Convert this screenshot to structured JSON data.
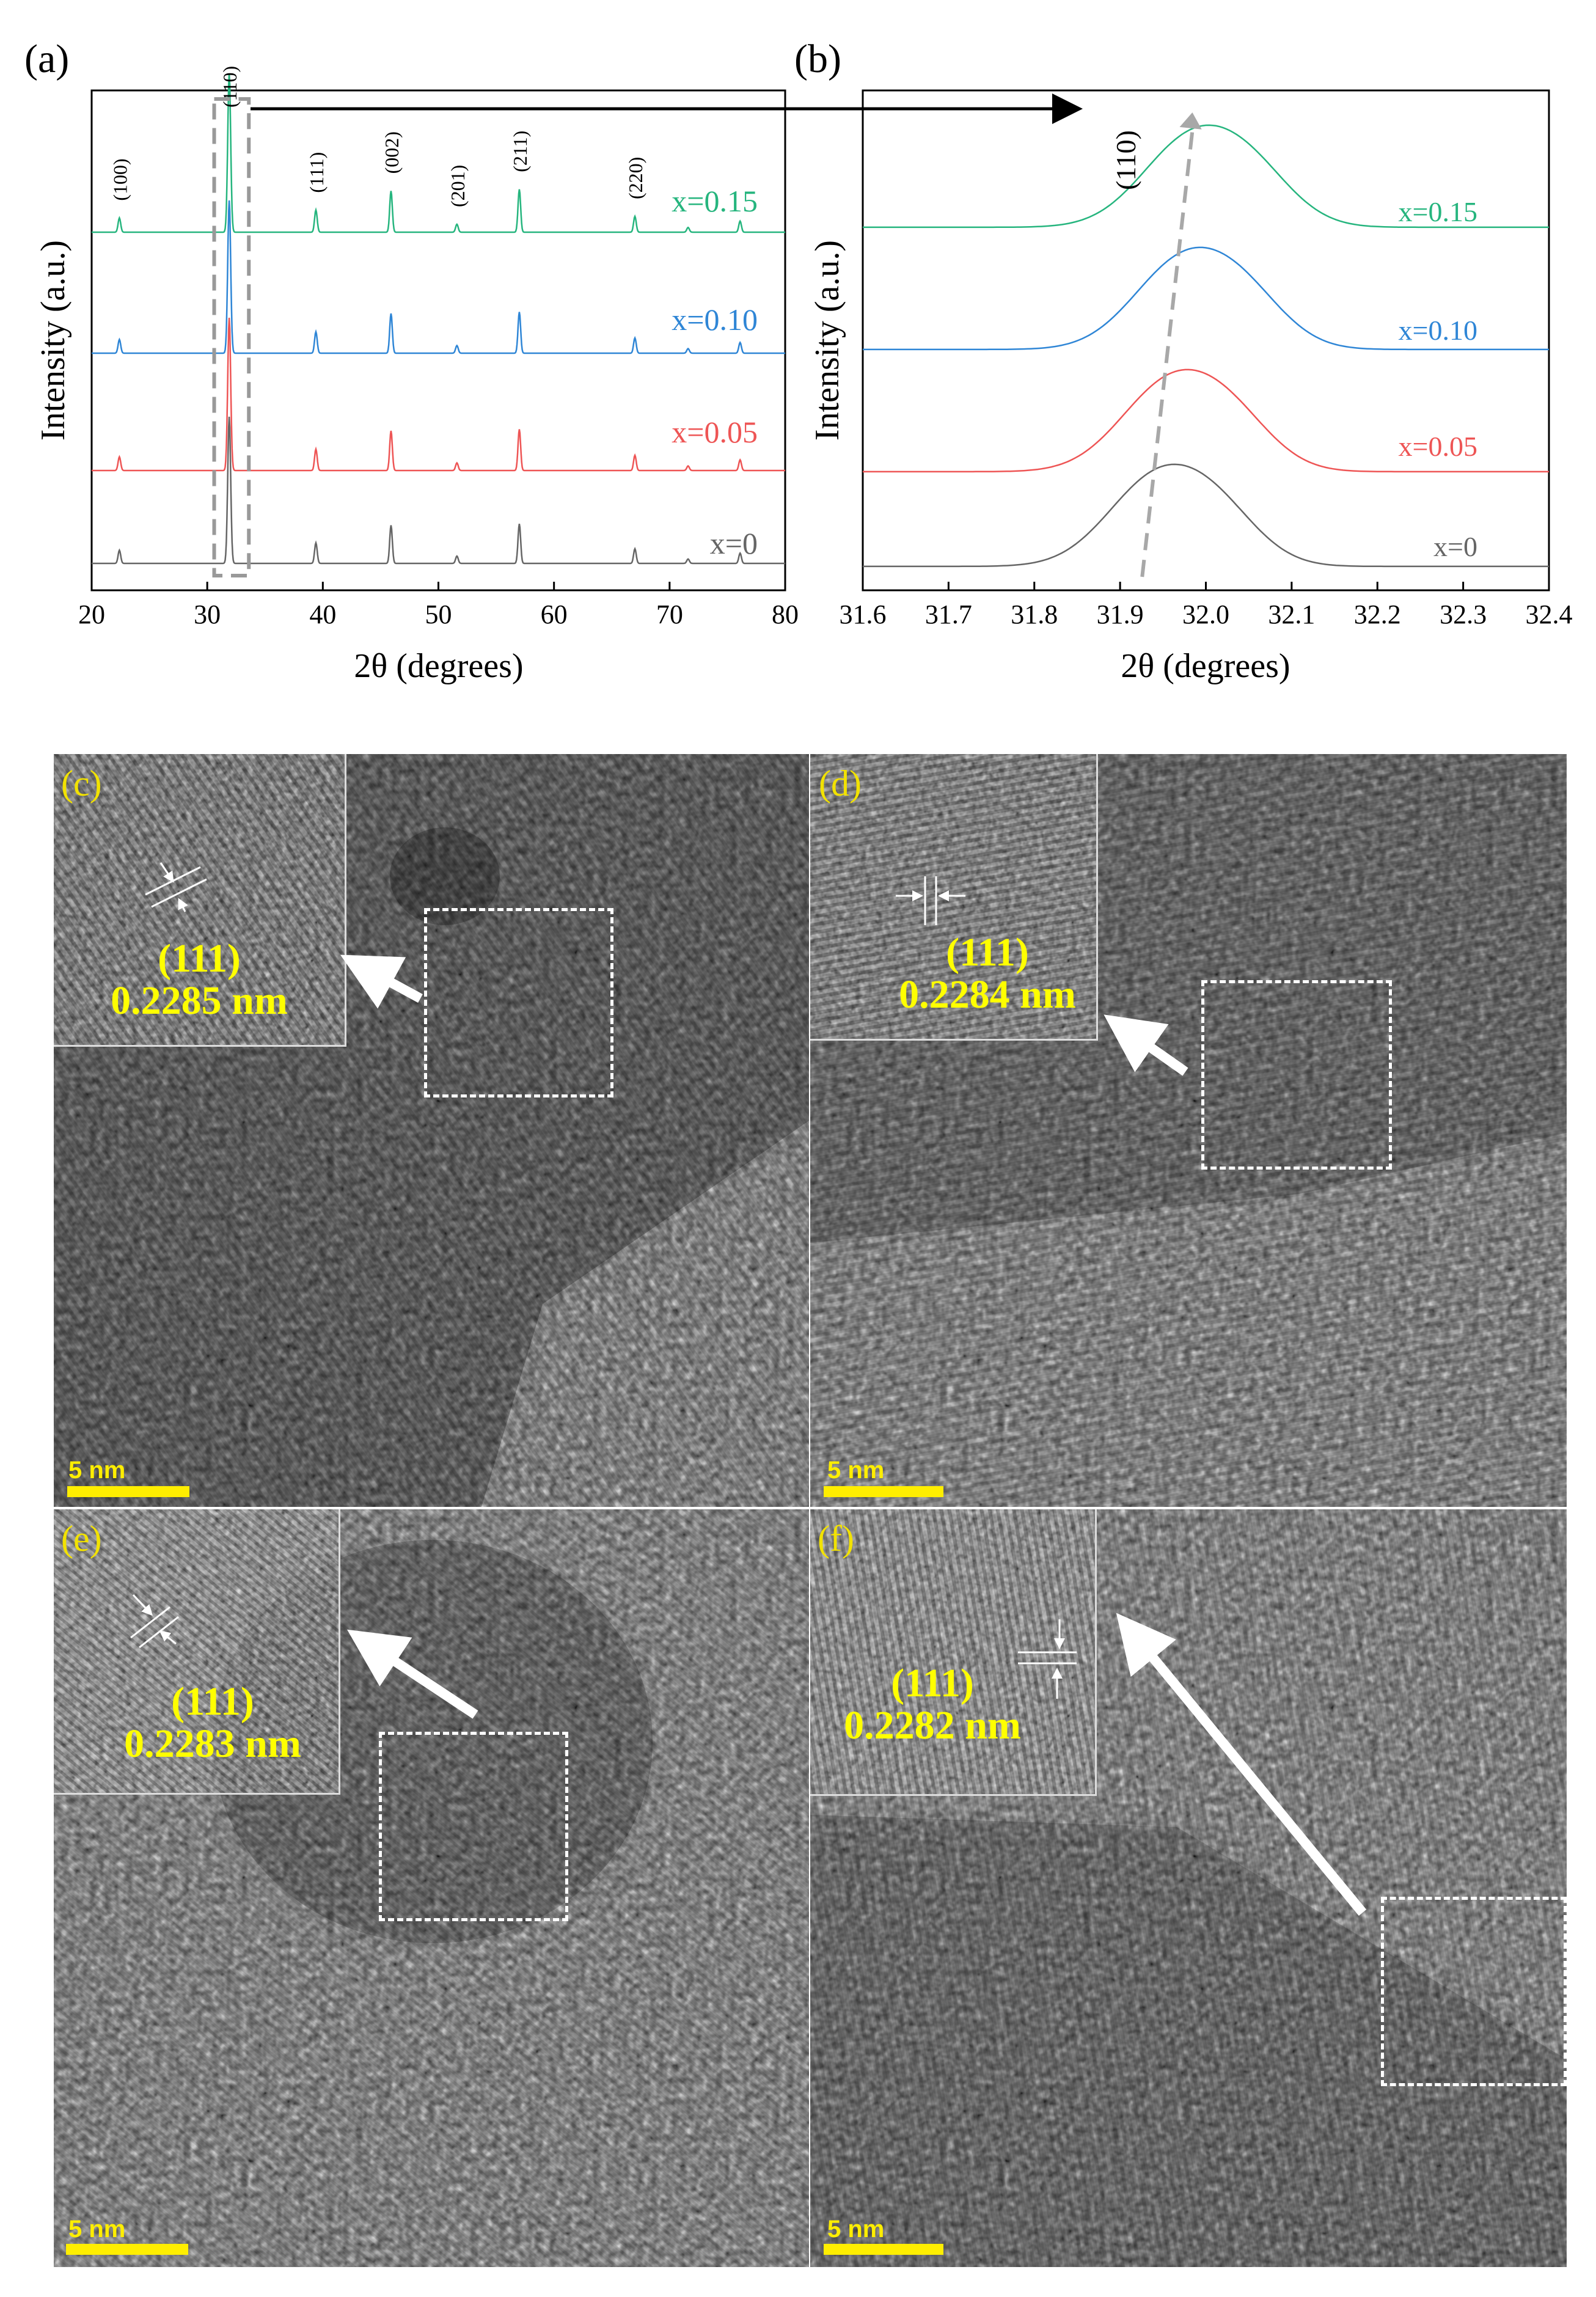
{
  "chart_data": [
    {
      "id": "a",
      "type": "line",
      "panel_label": "(a)",
      "xlabel": "2θ (degrees)",
      "ylabel": "Intensity (a.u.)",
      "xlim": [
        20,
        80
      ],
      "xticks": [
        20,
        30,
        40,
        50,
        60,
        70,
        80
      ],
      "series": [
        {
          "name": "x=0",
          "color": "#666666"
        },
        {
          "name": "x=0.05",
          "color": "#ee5555"
        },
        {
          "name": "x=0.10",
          "color": "#2f86d6"
        },
        {
          "name": "x=0.15",
          "color": "#26b57e"
        }
      ],
      "peaks": [
        {
          "label": "(100)",
          "x": 22.4,
          "rel": 0.09
        },
        {
          "label": "(110)",
          "x": 31.9,
          "rel": 1.0
        },
        {
          "label": "(111)",
          "x": 39.4,
          "rel": 0.14
        },
        {
          "label": "(002)",
          "x": 45.9,
          "rel": 0.26
        },
        {
          "label": "(201)",
          "x": 51.6,
          "rel": 0.05
        },
        {
          "label": "(211)",
          "x": 57.0,
          "rel": 0.27
        },
        {
          "label": "(220)",
          "x": 67.0,
          "rel": 0.1
        },
        {
          "label": "",
          "x": 71.6,
          "rel": 0.03
        },
        {
          "label": "",
          "x": 76.1,
          "rel": 0.07
        }
      ],
      "highlight_range": [
        30.6,
        33.6
      ]
    },
    {
      "id": "b",
      "type": "line",
      "panel_label": "(b)",
      "xlabel": "2θ (degrees)",
      "ylabel": "Intensity (a.u.)",
      "xlim": [
        31.6,
        32.4
      ],
      "xticks": [
        "31.6",
        "31.7",
        "31.8",
        "31.9",
        "32.0",
        "32.1",
        "32.2",
        "32.3",
        "32.4"
      ],
      "peak_label": "(110)",
      "series": [
        {
          "name": "x=0",
          "color": "#666666",
          "peak_x": 31.94
        },
        {
          "name": "x=0.05",
          "color": "#ee5555",
          "peak_x": 31.955
        },
        {
          "name": "x=0.10",
          "color": "#2f86d6",
          "peak_x": 31.97
        },
        {
          "name": "x=0.15",
          "color": "#26b57e",
          "peak_x": 31.98
        }
      ]
    }
  ],
  "tem_panels": [
    {
      "label": "(c)",
      "hkl": "(111)",
      "d_spacing": "0.2285 nm",
      "scale": "5 nm"
    },
    {
      "label": "(d)",
      "hkl": "(111)",
      "d_spacing": "0.2284 nm",
      "scale": "5 nm"
    },
    {
      "label": "(e)",
      "hkl": "(111)",
      "d_spacing": "0.2283 nm",
      "scale": "5 nm"
    },
    {
      "label": "(f)",
      "hkl": "(111)",
      "d_spacing": "0.2282 nm",
      "scale": "5 nm"
    }
  ]
}
